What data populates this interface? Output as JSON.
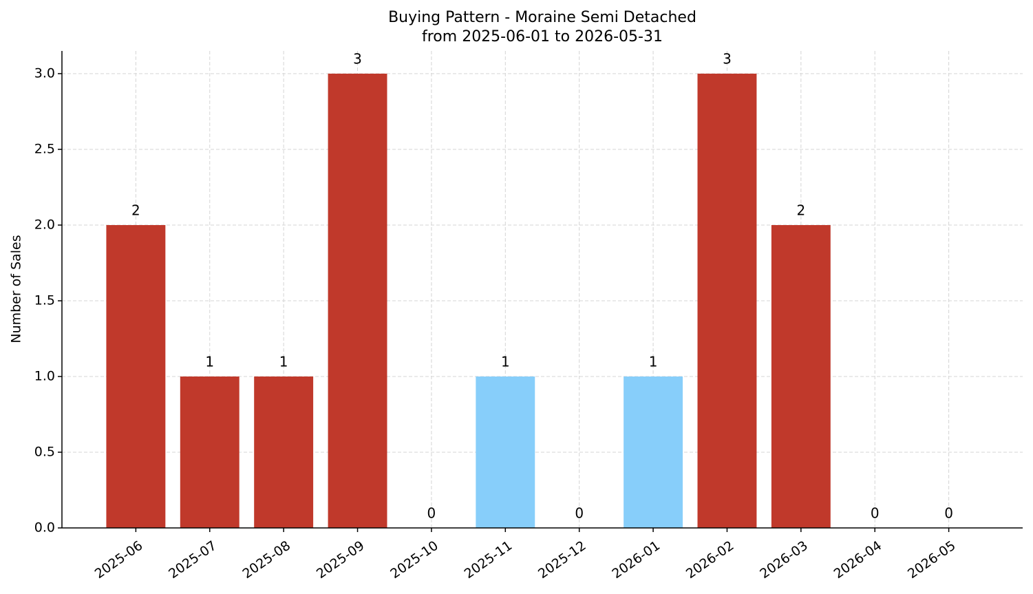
{
  "chart_data": {
    "type": "bar",
    "title": "Buying Pattern - Moraine Semi Detached",
    "subtitle": "from 2025-06-01 to 2026-05-31",
    "y_label": "Number of Sales",
    "categories": [
      "2025-06",
      "2025-07",
      "2025-08",
      "2025-09",
      "2025-10",
      "2025-11",
      "2025-12",
      "2026-01",
      "2026-02",
      "2026-03",
      "2026-04",
      "2026-05"
    ],
    "values": [
      2,
      1,
      1,
      3,
      0,
      1,
      0,
      1,
      3,
      2,
      0,
      0
    ],
    "colors": [
      "#c0392b",
      "#c0392b",
      "#c0392b",
      "#c0392b",
      "#c0392b",
      "#87cefa",
      "#c0392b",
      "#87cefa",
      "#c0392b",
      "#c0392b",
      "#c0392b",
      "#c0392b"
    ],
    "ylim": [
      0,
      3.15
    ],
    "yticks": [
      {
        "value": 0,
        "label": "0.0"
      },
      {
        "value": 0.5,
        "label": "0.5"
      },
      {
        "value": 1,
        "label": "1.0"
      },
      {
        "value": 1.5,
        "label": "1.5"
      },
      {
        "value": 2,
        "label": "2.0"
      },
      {
        "value": 2.5,
        "label": "2.5"
      },
      {
        "value": 3,
        "label": "3.0"
      }
    ],
    "grid": true
  }
}
